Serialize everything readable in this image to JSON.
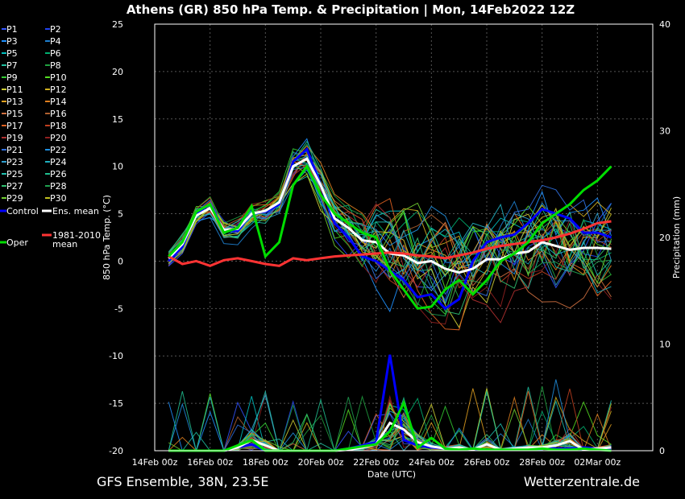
{
  "chart_data": {
    "type": "line",
    "title": "Athens  (GR)  850 hPa Temp. & Precipitation | Mon, 14Feb2022 12Z",
    "xlabel": "Date (UTC)",
    "ylabel_left": "850 hPa Temp. (°C)",
    "ylabel_right": "Precipitation (mm)",
    "ylim_left": [
      -20,
      25
    ],
    "ylim_right": [
      0,
      40
    ],
    "x_ticks": [
      "14Feb 00z",
      "16Feb 00z",
      "18Feb 00z",
      "20Feb 00z",
      "22Feb 00z",
      "24Feb 00z",
      "26Feb 00z",
      "28Feb 00z",
      "02Mar 00z"
    ],
    "y_ticks_left": [
      25,
      20,
      15,
      10,
      5,
      0,
      -5,
      -10,
      -15,
      -20
    ],
    "y_ticks_right": [
      40,
      30,
      20,
      10,
      0
    ],
    "grid": true,
    "legend_position": "left",
    "footer_left": "GFS Ensemble, 38N, 23.5E",
    "footer_right": "Wetterzentrale.de",
    "x_days": [
      0.5,
      1,
      1.5,
      2,
      2.5,
      3,
      3.5,
      4,
      4.5,
      5,
      5.5,
      6,
      6.5,
      7,
      7.5,
      8,
      8.5,
      9,
      9.5,
      10,
      10.5,
      11,
      11.5,
      12,
      12.5,
      13,
      13.5,
      14,
      14.5,
      15,
      15.5,
      16,
      16.5
    ],
    "series": [
      {
        "name": "Control",
        "color": "#0000ff",
        "width": 3,
        "values": [
          0.0,
          1.5,
          5.0,
          6.0,
          3.2,
          3.2,
          5.0,
          5.2,
          6.0,
          10.5,
          11.8,
          8.0,
          4.0,
          2.5,
          0.5,
          0.0,
          -1.0,
          -2.0,
          -3.8,
          -3.5,
          -5.0,
          -4.0,
          0.0,
          2.0,
          2.5,
          2.8,
          4.0,
          5.5,
          5.0,
          4.5,
          3.0,
          3.0,
          2.5
        ]
      },
      {
        "name": "Ens. mean",
        "color": "#ffffff",
        "width": 3,
        "values": [
          0.3,
          1.8,
          4.8,
          5.6,
          3.3,
          3.4,
          5.0,
          5.3,
          6.2,
          10.0,
          10.8,
          8.0,
          4.5,
          3.5,
          2.2,
          2.0,
          0.8,
          0.6,
          -0.2,
          0.0,
          -0.8,
          -1.2,
          -0.8,
          0.2,
          0.2,
          0.8,
          1.0,
          2.0,
          1.6,
          1.2,
          1.4,
          1.4,
          1.3
        ]
      },
      {
        "name": "1981-2010 mean",
        "color": "#ff3333",
        "width": 3,
        "values": [
          0.5,
          -0.3,
          0.0,
          -0.5,
          0.1,
          0.3,
          0.0,
          -0.3,
          -0.5,
          0.3,
          0.1,
          0.3,
          0.5,
          0.6,
          0.7,
          0.8,
          0.9,
          0.8,
          0.6,
          0.5,
          0.3,
          0.6,
          0.9,
          1.3,
          1.6,
          1.8,
          2.0,
          2.2,
          2.5,
          2.9,
          3.4,
          4.0,
          4.2
        ]
      },
      {
        "name": "Oper",
        "color": "#00dd00",
        "width": 3,
        "values": [
          0.5,
          2.0,
          5.2,
          6.0,
          3.0,
          3.5,
          5.8,
          0.5,
          2.0,
          8.0,
          10.0,
          7.0,
          5.0,
          4.0,
          3.0,
          2.5,
          -1.0,
          -3.0,
          -5.0,
          -4.8,
          -3.0,
          -2.0,
          -3.5,
          -2.0,
          0.0,
          0.8,
          2.0,
          4.0,
          5.0,
          6.0,
          7.5,
          8.5,
          10.0
        ]
      }
    ],
    "precip_series": [
      {
        "name": "Control",
        "color": "#0000ff",
        "values": [
          0,
          0,
          0,
          0,
          0,
          0.3,
          0.6,
          0,
          0,
          0,
          0,
          0,
          0,
          0.2,
          0.5,
          0.8,
          9.0,
          1.0,
          0.5,
          0.3,
          0.2,
          0.2,
          0.1,
          0.1,
          0.1,
          0.2,
          0.3,
          0.3,
          0.2,
          0.2,
          0.3,
          0.2,
          0.1
        ]
      },
      {
        "name": "Ens. mean",
        "color": "#ffffff",
        "values": [
          0,
          0,
          0,
          0,
          0,
          0.3,
          1.0,
          0.5,
          0,
          0,
          0,
          0,
          0,
          0.1,
          0.3,
          0.6,
          2.6,
          2.0,
          0.8,
          0.4,
          0.2,
          0.3,
          0.1,
          0.6,
          0.1,
          0.2,
          0.3,
          0.3,
          0.5,
          0.9,
          0.1,
          0.2,
          0.3
        ]
      },
      {
        "name": "Oper",
        "color": "#00dd00",
        "values": [
          0,
          0,
          0,
          0,
          0,
          0.5,
          1.0,
          0,
          0,
          0,
          0,
          0,
          0,
          0.2,
          0.4,
          0.6,
          1.8,
          4.5,
          0.3,
          1.2,
          0.2,
          0.1,
          0.2,
          0.1,
          0.1,
          0.1,
          0.1,
          0.2,
          0.1,
          0.1,
          0.2,
          0.1,
          0.0
        ]
      }
    ],
    "legend_members": [
      {
        "name": "P1",
        "color": "#3355ff"
      },
      {
        "name": "P2",
        "color": "#2244ee"
      },
      {
        "name": "P3",
        "color": "#1e90ff"
      },
      {
        "name": "P4",
        "color": "#1e7fcf"
      },
      {
        "name": "P5",
        "color": "#00bfbf"
      },
      {
        "name": "P6",
        "color": "#00b070"
      },
      {
        "name": "P7",
        "color": "#20c0a0"
      },
      {
        "name": "P8",
        "color": "#20a040"
      },
      {
        "name": "P9",
        "color": "#33cc33"
      },
      {
        "name": "P10",
        "color": "#55dd22"
      },
      {
        "name": "P11",
        "color": "#cccc33"
      },
      {
        "name": "P12",
        "color": "#d0b020"
      },
      {
        "name": "P13",
        "color": "#e0a020"
      },
      {
        "name": "P14",
        "color": "#e08020"
      },
      {
        "name": "P15",
        "color": "#d07040"
      },
      {
        "name": "P16",
        "color": "#b06030"
      },
      {
        "name": "P17",
        "color": "#e06020"
      },
      {
        "name": "P18",
        "color": "#c04020"
      },
      {
        "name": "P19",
        "color": "#b03030"
      },
      {
        "name": "P20",
        "color": "#902020"
      },
      {
        "name": "P21",
        "color": "#3070e0"
      },
      {
        "name": "P22",
        "color": "#2090e0"
      },
      {
        "name": "P23",
        "color": "#30a0d0"
      },
      {
        "name": "P24",
        "color": "#20b0c0"
      },
      {
        "name": "P25",
        "color": "#20c0b0"
      },
      {
        "name": "P26",
        "color": "#20c090"
      },
      {
        "name": "P27",
        "color": "#30c070"
      },
      {
        "name": "P28",
        "color": "#20a050"
      },
      {
        "name": "P29",
        "color": "#70d030"
      },
      {
        "name": "P30",
        "color": "#c0c020"
      }
    ]
  }
}
